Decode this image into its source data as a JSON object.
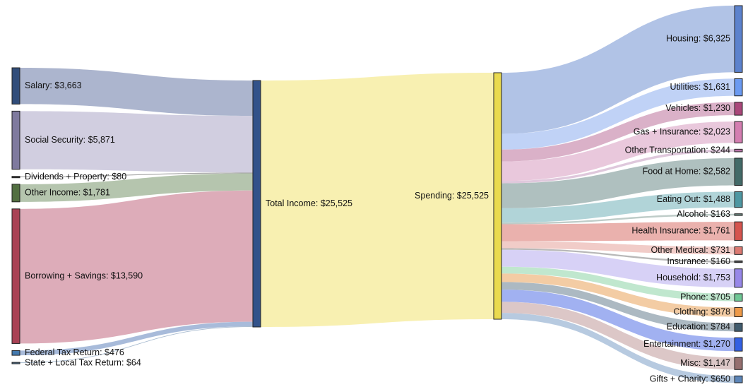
{
  "chart_data": {
    "type": "sankey",
    "unit_prefix": "$",
    "sources": [
      {
        "name": "Salary",
        "value": 3663,
        "color": "#1b3a6b",
        "flow": "#a3adc9"
      },
      {
        "name": "Social Security",
        "value": 5871,
        "color": "#716b93",
        "flow": "#ccc9dd"
      },
      {
        "name": "Dividends + Property",
        "value": 80,
        "color": "#2e2e2e",
        "flow": "#9a9a9a"
      },
      {
        "name": "Other Income",
        "value": 1781,
        "color": "#3f5f2c",
        "flow": "#adbfa5"
      },
      {
        "name": "Borrowing + Savings",
        "value": 13590,
        "color": "#a02d42",
        "flow": "#d9a3b1"
      },
      {
        "name": "Federal Tax Return",
        "value": 476,
        "color": "#2f6aa5",
        "flow": "#9fb4d6"
      },
      {
        "name": "State + Local Tax Return",
        "value": 64,
        "color": "#3a5f80",
        "flow": "#9fb4cb"
      }
    ],
    "total": {
      "name": "Total Income",
      "value": 25525,
      "color": "#1c3f7d"
    },
    "spending": {
      "name": "Spending",
      "value": 25525,
      "color": "#e8d63c",
      "flow": "#f7eea8"
    },
    "categories": [
      {
        "name": "Housing",
        "value": 6325,
        "color": "#4a74c8",
        "flow": "#a9bce3"
      },
      {
        "name": "Utilities",
        "value": 1631,
        "color": "#5b8ff0",
        "flow": "#b9cdf5"
      },
      {
        "name": "Vehicles",
        "value": 1230,
        "color": "#a1336b",
        "flow": "#d6a8c2"
      },
      {
        "name": "Gas + Insurance",
        "value": 2023,
        "color": "#cf70a8",
        "flow": "#e7c2d8"
      },
      {
        "name": "Other Transportation",
        "value": 244,
        "color": "#b066a0",
        "flow": "#dcc2d8"
      },
      {
        "name": "Food at Home",
        "value": 2582,
        "color": "#2f5a58",
        "flow": "#a6b9b8"
      },
      {
        "name": "Eating Out",
        "value": 1488,
        "color": "#3b8c98",
        "flow": "#a9cfd4"
      },
      {
        "name": "Alcohol",
        "value": 163,
        "color": "#5f7f77",
        "flow": "#b7c7c2"
      },
      {
        "name": "Health Insurance",
        "value": 1761,
        "color": "#d0413b",
        "flow": "#e8a8a4"
      },
      {
        "name": "Other Medical",
        "value": 731,
        "color": "#d86a62",
        "flow": "#efc6c2"
      },
      {
        "name": "Insurance",
        "value": 160,
        "color": "#333333",
        "flow": "#b0b0b0"
      },
      {
        "name": "Household",
        "value": 1753,
        "color": "#8c7ae6",
        "flow": "#d3ccf5"
      },
      {
        "name": "Phone",
        "value": 705,
        "color": "#5fc28a",
        "flow": "#b9e4c9"
      },
      {
        "name": "Clothing",
        "value": 878,
        "color": "#ec8f34",
        "flow": "#f2c69a"
      },
      {
        "name": "Education",
        "value": 784,
        "color": "#2c4a5e",
        "flow": "#a3b1bb"
      },
      {
        "name": "Entertainment",
        "value": 1270,
        "color": "#1d4fe0",
        "flow": "#97a8ef"
      },
      {
        "name": "Misc",
        "value": 1147,
        "color": "#8a5f5f",
        "flow": "#d8c1c1"
      },
      {
        "name": "Gifts + Charity",
        "value": 650,
        "color": "#4a78b0",
        "flow": "#afc4dd"
      }
    ]
  }
}
